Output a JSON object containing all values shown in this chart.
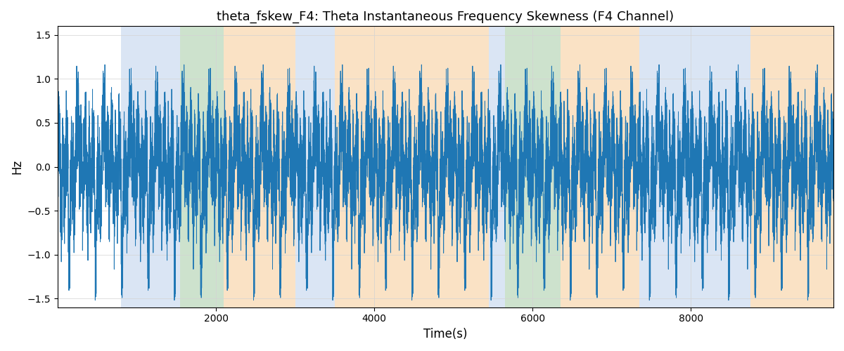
{
  "title": "theta_fskew_F4: Theta Instantaneous Frequency Skewness (F4 Channel)",
  "xlabel": "Time(s)",
  "ylabel": "Hz",
  "xlim": [
    0,
    9800
  ],
  "ylim": [
    -1.6,
    1.6
  ],
  "yticks": [
    -1.5,
    -1.0,
    -0.5,
    0.0,
    0.5,
    1.0,
    1.5
  ],
  "xticks": [
    2000,
    4000,
    6000,
    8000
  ],
  "line_color": "#1f77b4",
  "line_width": 0.7,
  "figsize": [
    12,
    5
  ],
  "dpi": 100,
  "background_color": "#ffffff",
  "regions": [
    {
      "xmin": 800,
      "xmax": 1550,
      "color": "#aec6e8",
      "alpha": 0.45
    },
    {
      "xmin": 1550,
      "xmax": 2100,
      "color": "#90c090",
      "alpha": 0.45
    },
    {
      "xmin": 2100,
      "xmax": 3000,
      "color": "#f5c080",
      "alpha": 0.45
    },
    {
      "xmin": 3000,
      "xmax": 3500,
      "color": "#aec6e8",
      "alpha": 0.45
    },
    {
      "xmin": 3500,
      "xmax": 5450,
      "color": "#f5c080",
      "alpha": 0.45
    },
    {
      "xmin": 5450,
      "xmax": 5650,
      "color": "#aec6e8",
      "alpha": 0.45
    },
    {
      "xmin": 5650,
      "xmax": 6350,
      "color": "#90c090",
      "alpha": 0.45
    },
    {
      "xmin": 6350,
      "xmax": 7350,
      "color": "#f5c080",
      "alpha": 0.45
    },
    {
      "xmin": 7350,
      "xmax": 8750,
      "color": "#aec6e8",
      "alpha": 0.45
    },
    {
      "xmin": 8750,
      "xmax": 9800,
      "color": "#f5c080",
      "alpha": 0.45
    }
  ],
  "seed": 42,
  "n_points": 9800,
  "signal_scale": 1.52
}
